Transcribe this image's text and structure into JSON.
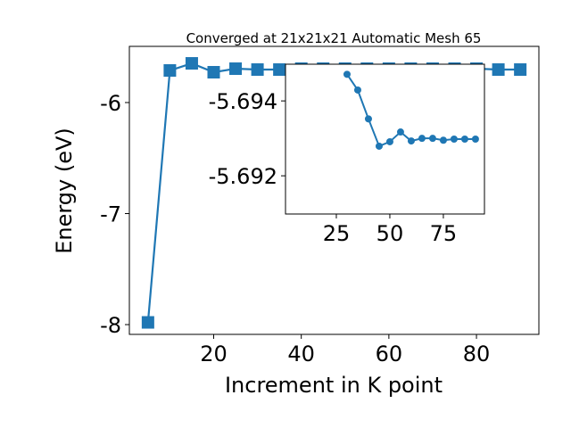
{
  "chart_data": [
    {
      "type": "line",
      "title": "Converged at 21x21x21 Automatic Mesh 65",
      "x_label": "Increment in K point",
      "y_label": "Energy (eV)",
      "x": [
        5,
        10,
        15,
        20,
        25,
        30,
        35,
        40,
        45,
        50,
        55,
        60,
        65,
        70,
        75,
        80,
        85,
        90
      ],
      "series": [
        {
          "name": "energy",
          "color": "#1f77b4",
          "marker": "square",
          "values": [
            -7.98,
            -5.711,
            -5.647,
            -5.727,
            -5.695,
            -5.703,
            -5.703,
            -5.695,
            -5.695,
            -5.695,
            -5.695,
            -5.695,
            -5.695,
            -5.695,
            -5.695,
            -5.695,
            -5.703,
            -5.703
          ]
        }
      ],
      "xlim": [
        0.75,
        94.25
      ],
      "ylim": [
        -8.088,
        -5.494
      ],
      "xticks": [
        20,
        40,
        60,
        80
      ],
      "yticks": [
        -8,
        -7,
        -6
      ]
    },
    {
      "type": "line",
      "inset": true,
      "x": [
        30,
        35,
        40,
        45,
        50,
        55,
        60,
        65,
        70,
        75,
        80,
        85,
        90
      ],
      "series": [
        {
          "name": "inset",
          "color": "#1f77b4",
          "marker": "circle",
          "values": [
            -5.69471,
            -5.69429,
            -5.69352,
            -5.69279,
            -5.69291,
            -5.69317,
            -5.69293,
            -5.693,
            -5.693,
            -5.69295,
            -5.69298,
            -5.69298,
            -5.69298
          ]
        }
      ],
      "xlim": [
        1.25,
        94.2
      ],
      "ylim": [
        -5.69098,
        -5.69498
      ],
      "xticks": [
        25,
        50,
        75
      ],
      "yticks": [
        -5.694,
        -5.692
      ]
    }
  ]
}
